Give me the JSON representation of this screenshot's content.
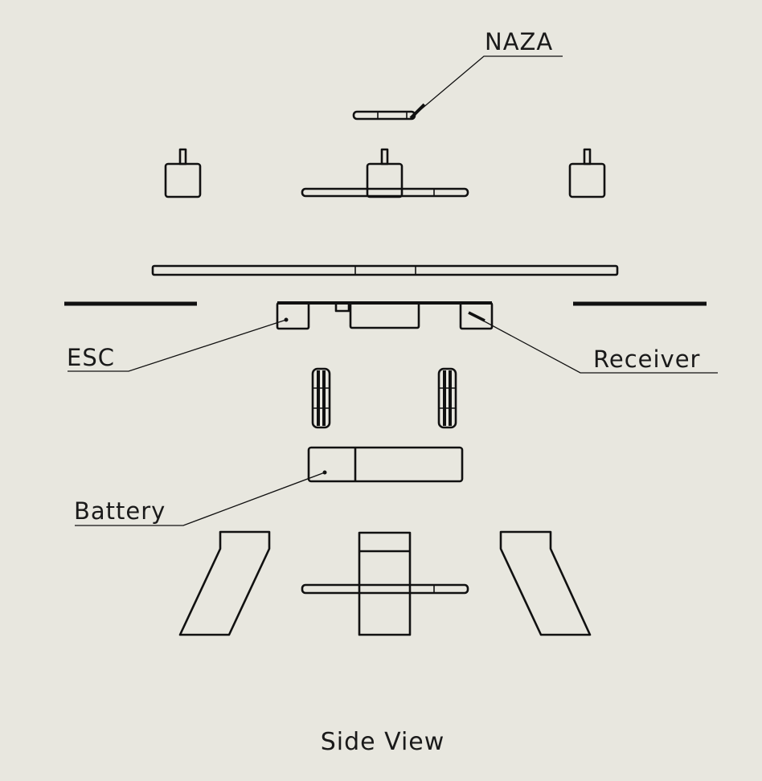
{
  "diagram": {
    "background": "#e8e7df",
    "line_color": "#111111",
    "labels": {
      "naza": "NAZA",
      "esc": "ESC",
      "receiver": "Receiver",
      "battery": "Battery"
    },
    "caption": "Side View"
  }
}
